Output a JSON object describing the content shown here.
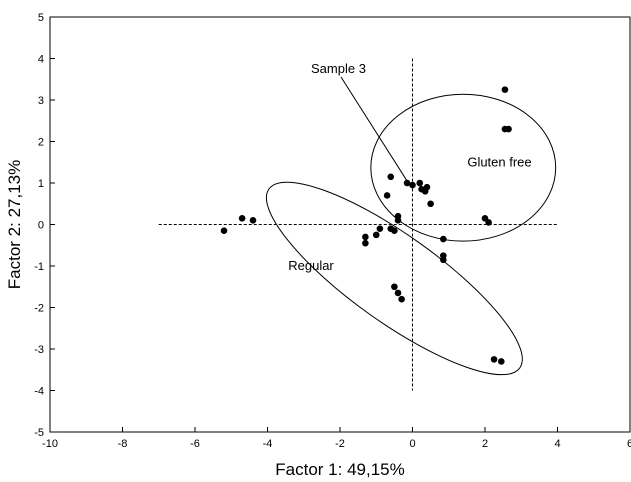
{
  "chart_data": {
    "type": "scatter",
    "title": "",
    "xlabel": "Factor 1: 49,15%",
    "ylabel": "Factor 2: 27,13%",
    "xlim": [
      -10,
      6
    ],
    "ylim": [
      -5,
      5
    ],
    "xticks": [
      -10,
      -8,
      -6,
      -4,
      -2,
      0,
      2,
      4,
      6
    ],
    "yticks": [
      -5,
      -4,
      -3,
      -2,
      -1,
      0,
      1,
      2,
      3,
      4,
      5
    ],
    "grid": false,
    "points": [
      {
        "x": -5.2,
        "y": -0.15
      },
      {
        "x": -4.7,
        "y": 0.15
      },
      {
        "x": -4.4,
        "y": 0.1
      },
      {
        "x": -1.3,
        "y": -0.3
      },
      {
        "x": -1.3,
        "y": -0.45
      },
      {
        "x": -1.0,
        "y": -0.25
      },
      {
        "x": -0.9,
        "y": -0.1
      },
      {
        "x": -0.6,
        "y": -0.1
      },
      {
        "x": -0.5,
        "y": -0.15
      },
      {
        "x": -0.4,
        "y": 0.2
      },
      {
        "x": -0.4,
        "y": 0.1
      },
      {
        "x": -0.7,
        "y": 0.7
      },
      {
        "x": -0.6,
        "y": 1.15
      },
      {
        "x": -0.15,
        "y": 1.0
      },
      {
        "x": 0.0,
        "y": 0.95
      },
      {
        "x": 0.2,
        "y": 1.0
      },
      {
        "x": 0.25,
        "y": 0.85
      },
      {
        "x": 0.35,
        "y": 0.8
      },
      {
        "x": 0.4,
        "y": 0.9
      },
      {
        "x": 0.5,
        "y": 0.5
      },
      {
        "x": 0.85,
        "y": -0.35
      },
      {
        "x": 0.85,
        "y": -0.75
      },
      {
        "x": 0.85,
        "y": -0.85
      },
      {
        "x": -0.5,
        "y": -1.5
      },
      {
        "x": -0.4,
        "y": -1.65
      },
      {
        "x": -0.3,
        "y": -1.8
      },
      {
        "x": 2.0,
        "y": 0.15
      },
      {
        "x": 2.1,
        "y": 0.05
      },
      {
        "x": 2.55,
        "y": 3.25
      },
      {
        "x": 2.55,
        "y": 2.3
      },
      {
        "x": 2.65,
        "y": 2.3
      },
      {
        "x": 2.25,
        "y": -3.25
      },
      {
        "x": 2.45,
        "y": -3.3
      }
    ],
    "reference_lines": {
      "h_y": 0,
      "h_range": [
        -7,
        4
      ],
      "v_x": 0,
      "v_range": [
        -4,
        4
      ]
    },
    "annotations": [
      {
        "text": "Gluten free",
        "x": 2.4,
        "y": 1.4
      },
      {
        "text": "Regular",
        "x": -2.8,
        "y": -1.1
      },
      {
        "text": "Sample 3",
        "x": -2.8,
        "y": 3.65,
        "arrow_to": {
          "x": -0.15,
          "y": 1.05
        }
      }
    ],
    "circle": {
      "cx": 1.4,
      "cy": 1.37,
      "rx": 2.55,
      "ry": 1.77
    },
    "ellipse": {
      "cx": -0.5,
      "cy": -1.3,
      "rx": 4.25,
      "ry": 1.2,
      "rotation_deg": 35.5
    }
  }
}
